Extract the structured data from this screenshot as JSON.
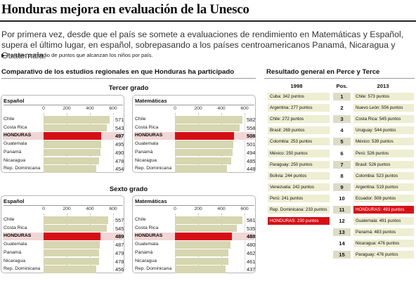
{
  "header": {
    "title": "Honduras mejora en evaluación de la Unesco",
    "intro": "Por primera vez, desde que el país se somete a evaluaciones de rendimiento en Matemáticas y Español, supera el último lugar, en español, sobrepasando a los países centroamericanos Panamá, Nicaragua y Guatemala.",
    "note": "Puntaje: promedio de puntos que alcanzan los niños por país."
  },
  "colors": {
    "bar": "#d6d6b0",
    "highlight": "#d60f16",
    "rank_fill": "#eeeed2"
  },
  "left": {
    "title": "Comparativo de los estudios regionales en que Honduras ha participado",
    "grade3": "Tercer grado",
    "grade6": "Sexto grado"
  },
  "right": {
    "title": "Resultado general en Perce y Terce",
    "col_1998": "1998",
    "col_pos": "Pos.",
    "col_2013": "2013"
  },
  "chart_data": [
    {
      "type": "bar",
      "title": "Español",
      "group": "Tercer grado",
      "xlim": [
        0,
        600
      ],
      "ticks": [
        0,
        200,
        400,
        600
      ],
      "categories": [
        "Chile",
        "Costa Rica",
        "HONDURAS",
        "Guatemala",
        "Panamá",
        "Nicaragua",
        "Rep. Dominicana"
      ],
      "values": [
        571,
        543,
        497,
        495,
        490,
        478,
        454
      ],
      "highlight": "HONDURAS"
    },
    {
      "type": "bar",
      "title": "Matemáticas",
      "group": "Tercer grado",
      "xlim": [
        0,
        600
      ],
      "ticks": [
        0,
        200,
        400,
        600
      ],
      "categories": [
        "Chile",
        "Costa Rica",
        "HONDURAS",
        "Guatemala",
        "Panamá",
        "Nicaragua",
        "Rep. Dominicana"
      ],
      "values": [
        582,
        558,
        508,
        501,
        494,
        485,
        448
      ],
      "highlight": "HONDURAS"
    },
    {
      "type": "bar",
      "title": "Español",
      "group": "Sexto grado",
      "xlim": [
        0,
        600
      ],
      "ticks": [
        0,
        200,
        400,
        600
      ],
      "categories": [
        "Chile",
        "Costa Rica",
        "HONDURAS",
        "Guatemala",
        "Panamá",
        "Nicaragua",
        "Rep. Dominicana"
      ],
      "values": [
        557,
        545,
        489,
        487,
        479,
        478,
        456
      ],
      "highlight": "HONDURAS"
    },
    {
      "type": "bar",
      "title": "Matemáticas",
      "group": "Sexto grado",
      "xlim": [
        0,
        600
      ],
      "ticks": [
        0,
        200,
        400,
        600
      ],
      "categories": [
        "Chile",
        "Costa Rica",
        "HONDURAS",
        "Guatemala",
        "Panamá",
        "Nicaragua",
        "Rep. Dominicana"
      ],
      "values": [
        581,
        535,
        488,
        480,
        462,
        461,
        437
      ],
      "highlight": "HONDURAS"
    },
    {
      "type": "table",
      "title": "Resultado general en Perce y Terce",
      "columns": [
        "1998",
        "Pos.",
        "2013"
      ],
      "rows": [
        {
          "pos": "1",
          "y1998": "Cuba: 342 puntos",
          "y2013": "Chile: 573 puntos"
        },
        {
          "pos": "2",
          "y1998": "Argentina: 277 puntos",
          "y2013": "Nuevo León: 556 puntos"
        },
        {
          "pos": "3",
          "y1998": "Chile: 272 puntos",
          "y2013": "Costa Rica: 545 puntos"
        },
        {
          "pos": "4",
          "y1998": "Brasil: 269 puntos",
          "y2013": "Uruguay: 544 puntos"
        },
        {
          "pos": "5",
          "y1998": "Colombia: 253 puntos",
          "y2013": "México: 539 puntos"
        },
        {
          "pos": "6",
          "y1998": "México: 250 puntos",
          "y2013": "Perú: 526 puntos"
        },
        {
          "pos": "7",
          "y1998": "Paraguay: 250 puntos",
          "y2013": "Brasil: 526 puntos"
        },
        {
          "pos": "8",
          "y1998": "Bolivia: 244 puntos",
          "y2013": "Colombia: 523 puntos"
        },
        {
          "pos": "9",
          "y1998": "Venezuela: 242 puntos",
          "y2013": "Argentina: 519 puntos"
        },
        {
          "pos": "10",
          "y1998": "Perú: 241 puntos",
          "y2013": "Ecuador: 508 puntos"
        },
        {
          "pos": "11",
          "y1998": "Rep. Dominicana: 233 puntos",
          "y2013": "HONDURAS: 493 puntos"
        },
        {
          "pos": "12",
          "y1998": "HONDURAS: 230 puntos",
          "y2013": "Guatemala: 491 puntos"
        },
        {
          "pos": "13",
          "y1998": "",
          "y2013": "Panamá: 483 puntos"
        },
        {
          "pos": "14",
          "y1998": "",
          "y2013": "Nicaragua: 476 puntos"
        },
        {
          "pos": "15",
          "y1998": "",
          "y2013": "Paraguay: 476 puntos"
        }
      ]
    }
  ]
}
